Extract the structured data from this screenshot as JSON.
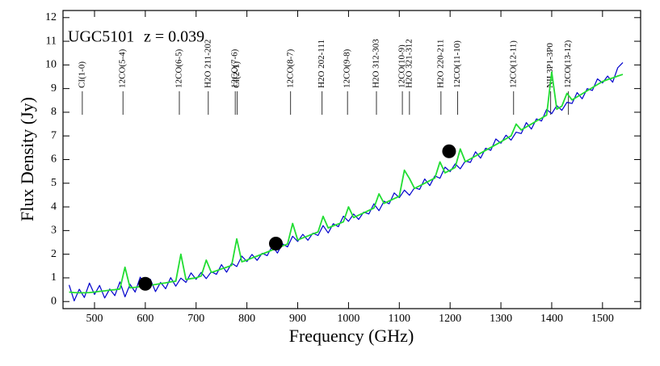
{
  "chart_data": {
    "type": "line",
    "x_label": "Frequency  (GHz)",
    "y_label": "Flux Density (Jy)",
    "source": "UGC5101",
    "redshift": "z = 0.039",
    "xlim": [
      438,
      1575
    ],
    "ylim": [
      -0.3,
      12.3
    ],
    "xticks": [
      500,
      600,
      700,
      800,
      900,
      1000,
      1100,
      1200,
      1300,
      1400,
      1500
    ],
    "yticks": [
      0,
      1,
      2,
      3,
      4,
      5,
      6,
      7,
      8,
      9,
      10,
      11,
      12
    ],
    "x": [
      450,
      460,
      470,
      480,
      490,
      500,
      510,
      520,
      530,
      540,
      550,
      560,
      570,
      580,
      590,
      600,
      610,
      620,
      630,
      640,
      650,
      660,
      670,
      680,
      690,
      700,
      710,
      720,
      730,
      740,
      750,
      760,
      770,
      780,
      790,
      800,
      810,
      820,
      830,
      840,
      850,
      860,
      870,
      880,
      890,
      900,
      910,
      920,
      930,
      940,
      950,
      960,
      970,
      980,
      990,
      1000,
      1010,
      1020,
      1030,
      1040,
      1050,
      1060,
      1070,
      1080,
      1090,
      1100,
      1110,
      1120,
      1130,
      1140,
      1150,
      1160,
      1170,
      1180,
      1190,
      1200,
      1210,
      1220,
      1230,
      1240,
      1250,
      1260,
      1270,
      1280,
      1290,
      1300,
      1310,
      1320,
      1330,
      1340,
      1350,
      1360,
      1370,
      1380,
      1390,
      1400,
      1410,
      1420,
      1430,
      1440,
      1450,
      1460,
      1470,
      1480,
      1490,
      1500,
      1510,
      1520,
      1530,
      1540
    ],
    "series": [
      {
        "color": "#0000cc",
        "values": [
          0.7,
          0.03,
          0.52,
          0.17,
          0.78,
          0.3,
          0.68,
          0.15,
          0.53,
          0.25,
          0.83,
          0.2,
          0.73,
          0.4,
          1.03,
          0.55,
          0.94,
          0.42,
          0.81,
          0.54,
          1.01,
          0.65,
          0.99,
          0.81,
          1.21,
          0.94,
          1.23,
          0.97,
          1.26,
          1.15,
          1.56,
          1.24,
          1.62,
          1.48,
          1.92,
          1.69,
          1.99,
          1.74,
          2.04,
          1.94,
          2.36,
          2.05,
          2.44,
          2.31,
          2.76,
          2.54,
          2.84,
          2.59,
          2.89,
          2.79,
          3.21,
          2.9,
          3.29,
          3.16,
          3.61,
          3.39,
          3.7,
          3.47,
          3.78,
          3.7,
          4.13,
          3.84,
          4.24,
          4.13,
          4.59,
          4.39,
          4.71,
          4.49,
          4.81,
          4.74,
          5.18,
          4.9,
          5.31,
          5.21,
          5.68,
          5.49,
          5.82,
          5.61,
          5.94,
          5.88,
          6.33,
          6.06,
          6.48,
          6.39,
          6.87,
          6.69,
          7.03,
          6.82,
          7.16,
          7.1,
          7.56,
          7.29,
          7.72,
          7.63,
          8.12,
          7.94,
          8.28,
          8.08,
          8.42,
          8.37,
          8.83,
          8.57,
          9.0,
          8.92,
          9.41,
          9.24,
          9.53,
          9.27,
          9.88,
          10.1
        ]
      },
      {
        "color": "#22dd33",
        "values": [
          0.4,
          0.38,
          0.37,
          0.37,
          0.38,
          0.4,
          0.43,
          0.45,
          0.48,
          0.5,
          0.53,
          1.45,
          0.58,
          0.6,
          0.63,
          0.65,
          0.69,
          0.72,
          0.76,
          0.79,
          0.83,
          0.86,
          2.0,
          0.93,
          0.97,
          1.0,
          1.08,
          1.75,
          1.23,
          1.3,
          1.38,
          1.45,
          1.53,
          2.65,
          1.68,
          1.75,
          1.84,
          1.92,
          2.01,
          2.09,
          2.18,
          2.26,
          2.35,
          2.43,
          3.3,
          2.6,
          2.69,
          2.77,
          2.86,
          2.94,
          3.6,
          3.11,
          3.2,
          3.28,
          3.37,
          4.0,
          3.55,
          3.65,
          3.75,
          3.85,
          3.95,
          4.55,
          4.15,
          4.25,
          4.35,
          4.45,
          5.55,
          5.2,
          4.78,
          4.89,
          5.0,
          5.11,
          5.22,
          5.9,
          5.44,
          5.55,
          5.67,
          6.45,
          5.91,
          6.03,
          6.15,
          6.27,
          6.39,
          6.51,
          6.63,
          6.75,
          6.88,
          7.0,
          7.5,
          7.25,
          7.38,
          7.5,
          7.63,
          7.75,
          7.88,
          9.7,
          8.13,
          8.26,
          8.8,
          8.52,
          8.65,
          8.78,
          8.91,
          9.04,
          9.17,
          9.3,
          9.38,
          9.45,
          9.53,
          9.6
        ]
      }
    ],
    "points": {
      "color": "#000000",
      "x": [
        600,
        857,
        1198
      ],
      "values": [
        0.75,
        2.45,
        6.35
      ]
    },
    "lines": [
      {
        "label": "CI(1-0)",
        "x": 476
      },
      {
        "label": "12CO(5-4)",
        "x": 556
      },
      {
        "label": "12CO(6-5)",
        "x": 667
      },
      {
        "label": "H2O 211-202",
        "x": 724
      },
      {
        "label": "12CO(7-6)",
        "x": 777
      },
      {
        "label": "CI(2-1)",
        "x": 781
      },
      {
        "label": "12CO(8-7)",
        "x": 886
      },
      {
        "label": "H2O 202-111",
        "x": 948
      },
      {
        "label": "12CO(9-8)",
        "x": 998
      },
      {
        "label": "H2O 312-303",
        "x": 1055
      },
      {
        "label": "12CO(10-9)",
        "x": 1106
      },
      {
        "label": "H2O 321-312",
        "x": 1120
      },
      {
        "label": "H2O 220-211",
        "x": 1182
      },
      {
        "label": "12CO(11-10)",
        "x": 1215
      },
      {
        "label": "12CO(12-11)",
        "x": 1325
      },
      {
        "label": "NII 3P1-3P0",
        "x": 1398
      },
      {
        "label": "12CO(13-12)",
        "x": 1433
      }
    ]
  }
}
